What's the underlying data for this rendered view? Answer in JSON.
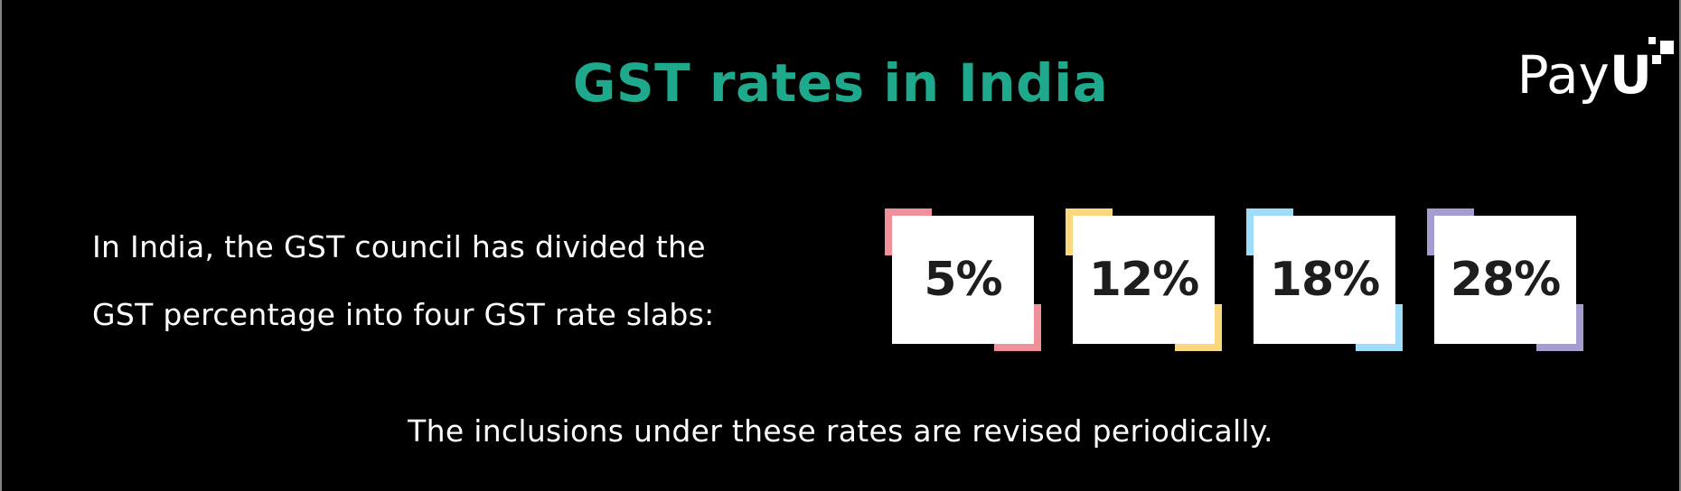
{
  "theme": {
    "background_color": "#000000",
    "title_color": "#1EA98C",
    "body_text_color": "#FFFFFF",
    "card_background_color": "#FFFFFF",
    "card_text_color": "#1D1D1F",
    "edge_line_color": "#828282"
  },
  "header": {
    "title": "GST rates in India",
    "logo": {
      "brand": "PayU",
      "text_regular": "Pay",
      "text_bold": "U"
    }
  },
  "intro": {
    "lines": [
      "In India, the GST council has divided the",
      "GST percentage into four GST rate slabs:"
    ]
  },
  "cards": {
    "items": [
      {
        "label": "5%",
        "accent_color": "#F0909A"
      },
      {
        "label": "12%",
        "accent_color": "#FAD87E"
      },
      {
        "label": "18%",
        "accent_color": "#9FDCF8"
      },
      {
        "label": "28%",
        "accent_color": "#A59CCF"
      }
    ]
  },
  "footer": {
    "text": "The inclusions under these rates are revised periodically."
  }
}
